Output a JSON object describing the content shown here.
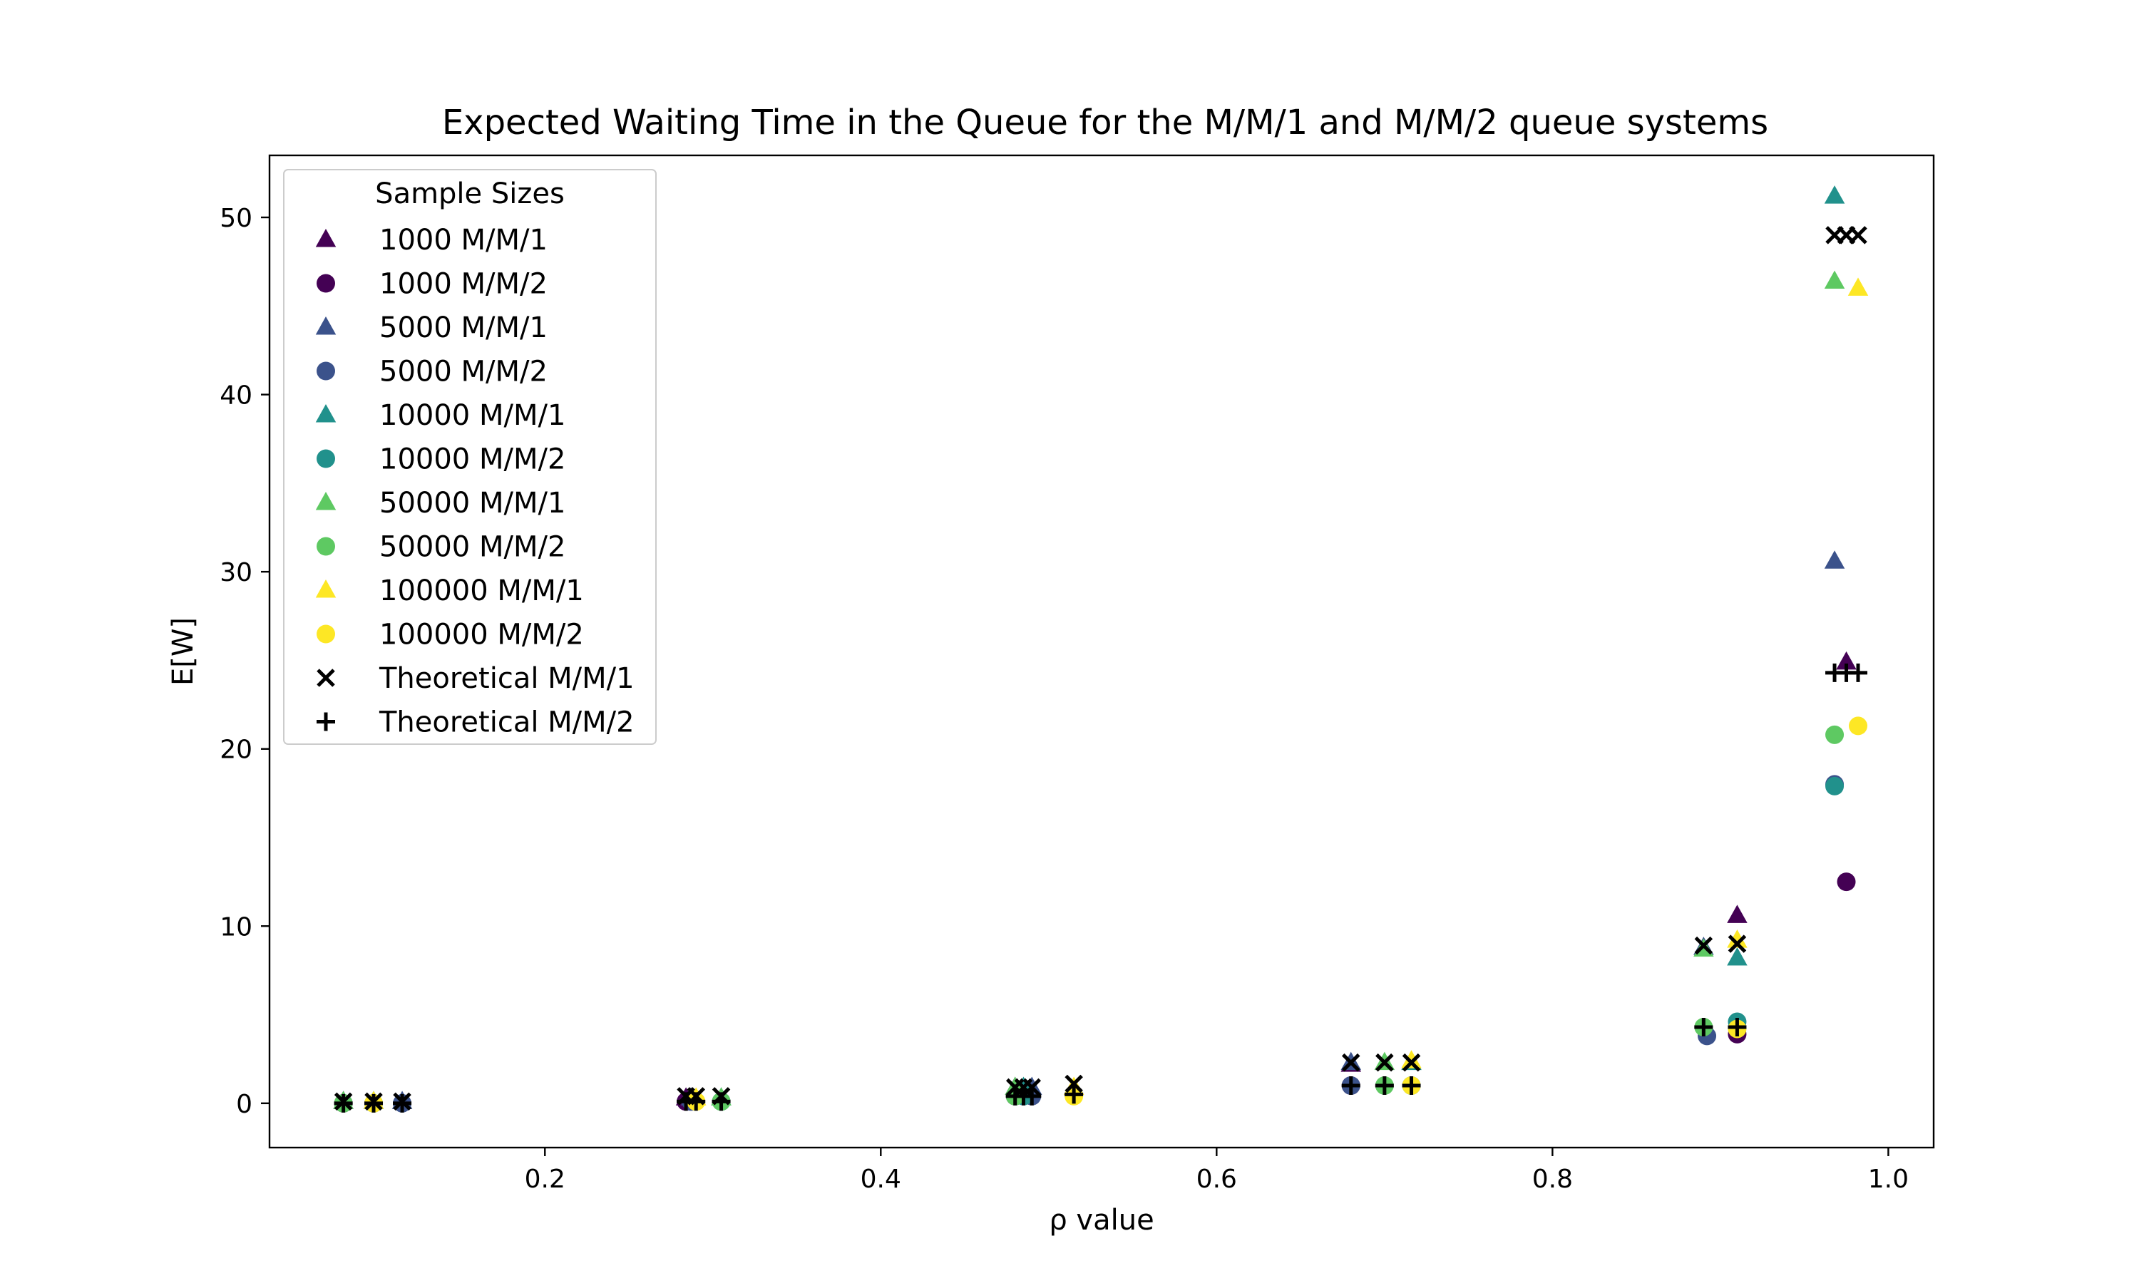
{
  "chart_data": {
    "type": "scatter",
    "title": "Expected Waiting Time in the Queue for the M/M/1 and M/M/2 queue systems",
    "xlabel": "ρ value",
    "ylabel": "E[W]",
    "xlim": [
      0.036,
      1.027
    ],
    "ylim": [
      -2.5,
      53.5
    ],
    "xticks": [
      0.2,
      0.4,
      0.6,
      0.8,
      1.0
    ],
    "xtick_labels": [
      "0.2",
      "0.4",
      "0.6",
      "0.8",
      "1.0"
    ],
    "yticks": [
      0,
      10,
      20,
      30,
      40,
      50
    ],
    "ytick_labels": [
      "0",
      "10",
      "20",
      "30",
      "40",
      "50"
    ],
    "grid": false,
    "legend": {
      "title": "Sample Sizes",
      "placement": "upper-left"
    },
    "series": [
      {
        "name": "1000 M/M/1",
        "marker": "triangle",
        "color": "#440154",
        "points": [
          [
            0.08,
            0.1
          ],
          [
            0.284,
            0.3
          ],
          [
            0.48,
            0.9
          ],
          [
            0.68,
            2.2
          ],
          [
            0.91,
            10.6
          ],
          [
            0.975,
            24.9
          ]
        ]
      },
      {
        "name": "1000 M/M/2",
        "marker": "circle",
        "color": "#440154",
        "points": [
          [
            0.08,
            0.0
          ],
          [
            0.284,
            0.1
          ],
          [
            0.48,
            0.4
          ],
          [
            0.68,
            1.0
          ],
          [
            0.91,
            3.9
          ],
          [
            0.975,
            12.5
          ]
        ]
      },
      {
        "name": "5000 M/M/1",
        "marker": "triangle",
        "color": "#3b528b",
        "points": [
          [
            0.115,
            0.1
          ],
          [
            0.287,
            0.3
          ],
          [
            0.49,
            0.9
          ],
          [
            0.68,
            2.3
          ],
          [
            0.89,
            8.8
          ],
          [
            0.968,
            30.6
          ]
        ]
      },
      {
        "name": "5000 M/M/2",
        "marker": "circle",
        "color": "#3b528b",
        "points": [
          [
            0.115,
            0.0
          ],
          [
            0.287,
            0.1
          ],
          [
            0.49,
            0.4
          ],
          [
            0.68,
            1.0
          ],
          [
            0.892,
            3.8
          ],
          [
            0.968,
            18.0
          ]
        ]
      },
      {
        "name": "10000 M/M/1",
        "marker": "triangle",
        "color": "#21918c",
        "points": [
          [
            0.098,
            0.1
          ],
          [
            0.305,
            0.3
          ],
          [
            0.485,
            0.9
          ],
          [
            0.716,
            2.3
          ],
          [
            0.91,
            8.2
          ],
          [
            0.968,
            51.2
          ]
        ]
      },
      {
        "name": "10000 M/M/2",
        "marker": "circle",
        "color": "#21918c",
        "points": [
          [
            0.098,
            0.0
          ],
          [
            0.305,
            0.1
          ],
          [
            0.485,
            0.4
          ],
          [
            0.716,
            1.0
          ],
          [
            0.91,
            4.6
          ],
          [
            0.968,
            17.9
          ]
        ]
      },
      {
        "name": "50000 M/M/1",
        "marker": "triangle",
        "color": "#5ec962",
        "points": [
          [
            0.08,
            0.1
          ],
          [
            0.305,
            0.3
          ],
          [
            0.48,
            0.9
          ],
          [
            0.7,
            2.3
          ],
          [
            0.89,
            8.7
          ],
          [
            0.968,
            46.4
          ]
        ]
      },
      {
        "name": "50000 M/M/2",
        "marker": "circle",
        "color": "#5ec962",
        "points": [
          [
            0.08,
            0.0
          ],
          [
            0.305,
            0.1
          ],
          [
            0.48,
            0.4
          ],
          [
            0.7,
            1.0
          ],
          [
            0.89,
            4.3
          ],
          [
            0.968,
            20.8
          ]
        ]
      },
      {
        "name": "100000 M/M/1",
        "marker": "triangle",
        "color": "#fde725",
        "points": [
          [
            0.098,
            0.1
          ],
          [
            0.29,
            0.3
          ],
          [
            0.515,
            0.9
          ],
          [
            0.716,
            2.4
          ],
          [
            0.91,
            9.2
          ],
          [
            0.982,
            46.0
          ]
        ]
      },
      {
        "name": "100000 M/M/2",
        "marker": "circle",
        "color": "#fde725",
        "points": [
          [
            0.098,
            0.0
          ],
          [
            0.29,
            0.1
          ],
          [
            0.515,
            0.4
          ],
          [
            0.716,
            1.0
          ],
          [
            0.91,
            4.2
          ],
          [
            0.982,
            21.3
          ]
        ]
      },
      {
        "name": "Theoretical M/M/1",
        "marker": "x",
        "color": "#000000",
        "points": [
          [
            0.08,
            0.1
          ],
          [
            0.098,
            0.1
          ],
          [
            0.115,
            0.1
          ],
          [
            0.284,
            0.4
          ],
          [
            0.29,
            0.4
          ],
          [
            0.305,
            0.4
          ],
          [
            0.48,
            0.9
          ],
          [
            0.485,
            0.9
          ],
          [
            0.49,
            0.9
          ],
          [
            0.515,
            1.1
          ],
          [
            0.68,
            2.3
          ],
          [
            0.7,
            2.3
          ],
          [
            0.716,
            2.3
          ],
          [
            0.89,
            8.9
          ],
          [
            0.91,
            9.0
          ],
          [
            0.968,
            49.0
          ],
          [
            0.975,
            49.0
          ],
          [
            0.982,
            49.0
          ]
        ]
      },
      {
        "name": "Theoretical M/M/2",
        "marker": "plus",
        "color": "#000000",
        "points": [
          [
            0.08,
            0.0
          ],
          [
            0.098,
            0.0
          ],
          [
            0.115,
            0.0
          ],
          [
            0.284,
            0.1
          ],
          [
            0.29,
            0.1
          ],
          [
            0.305,
            0.1
          ],
          [
            0.48,
            0.4
          ],
          [
            0.485,
            0.4
          ],
          [
            0.49,
            0.4
          ],
          [
            0.515,
            0.5
          ],
          [
            0.68,
            1.0
          ],
          [
            0.7,
            1.0
          ],
          [
            0.716,
            1.0
          ],
          [
            0.89,
            4.3
          ],
          [
            0.91,
            4.3
          ],
          [
            0.968,
            24.3
          ],
          [
            0.975,
            24.3
          ],
          [
            0.982,
            24.3
          ]
        ]
      }
    ]
  }
}
